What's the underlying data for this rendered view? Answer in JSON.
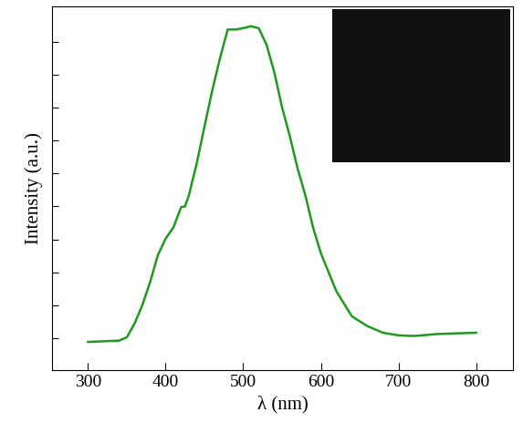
{
  "chart_data": {
    "type": "line",
    "x_label": "λ (nm)",
    "y_label": "Intensity (a.u.)",
    "x": [
      300,
      340,
      350,
      360,
      370,
      380,
      390,
      400,
      410,
      420,
      425,
      430,
      440,
      450,
      460,
      470,
      480,
      490,
      500,
      510,
      520,
      530,
      540,
      550,
      560,
      570,
      580,
      590,
      600,
      620,
      640,
      660,
      680,
      700,
      720,
      750,
      800
    ],
    "series": [
      {
        "name": "Intensity",
        "color": "#1e9a1e",
        "values": [
          -0.06,
          -0.04,
          0.01,
          0.22,
          0.5,
          0.85,
          1.26,
          1.51,
          1.68,
          1.99,
          2.0,
          2.17,
          2.65,
          3.21,
          3.76,
          4.25,
          4.69,
          4.69,
          4.71,
          4.74,
          4.71,
          4.46,
          4.04,
          3.51,
          3.07,
          2.58,
          2.17,
          1.68,
          1.29,
          0.71,
          0.33,
          0.18,
          0.08,
          0.04,
          0.03,
          0.06,
          0.08
        ]
      }
    ],
    "xlim": [
      254,
      847
    ],
    "xticks": [
      300,
      400,
      500,
      600,
      700,
      800
    ],
    "ylim": [
      -0.49,
      5.04
    ],
    "yticks": [
      0,
      0.5,
      1,
      1.5,
      2,
      2.5,
      3,
      3.5,
      4,
      4.5
    ],
    "tick_labels": "x"
  }
}
